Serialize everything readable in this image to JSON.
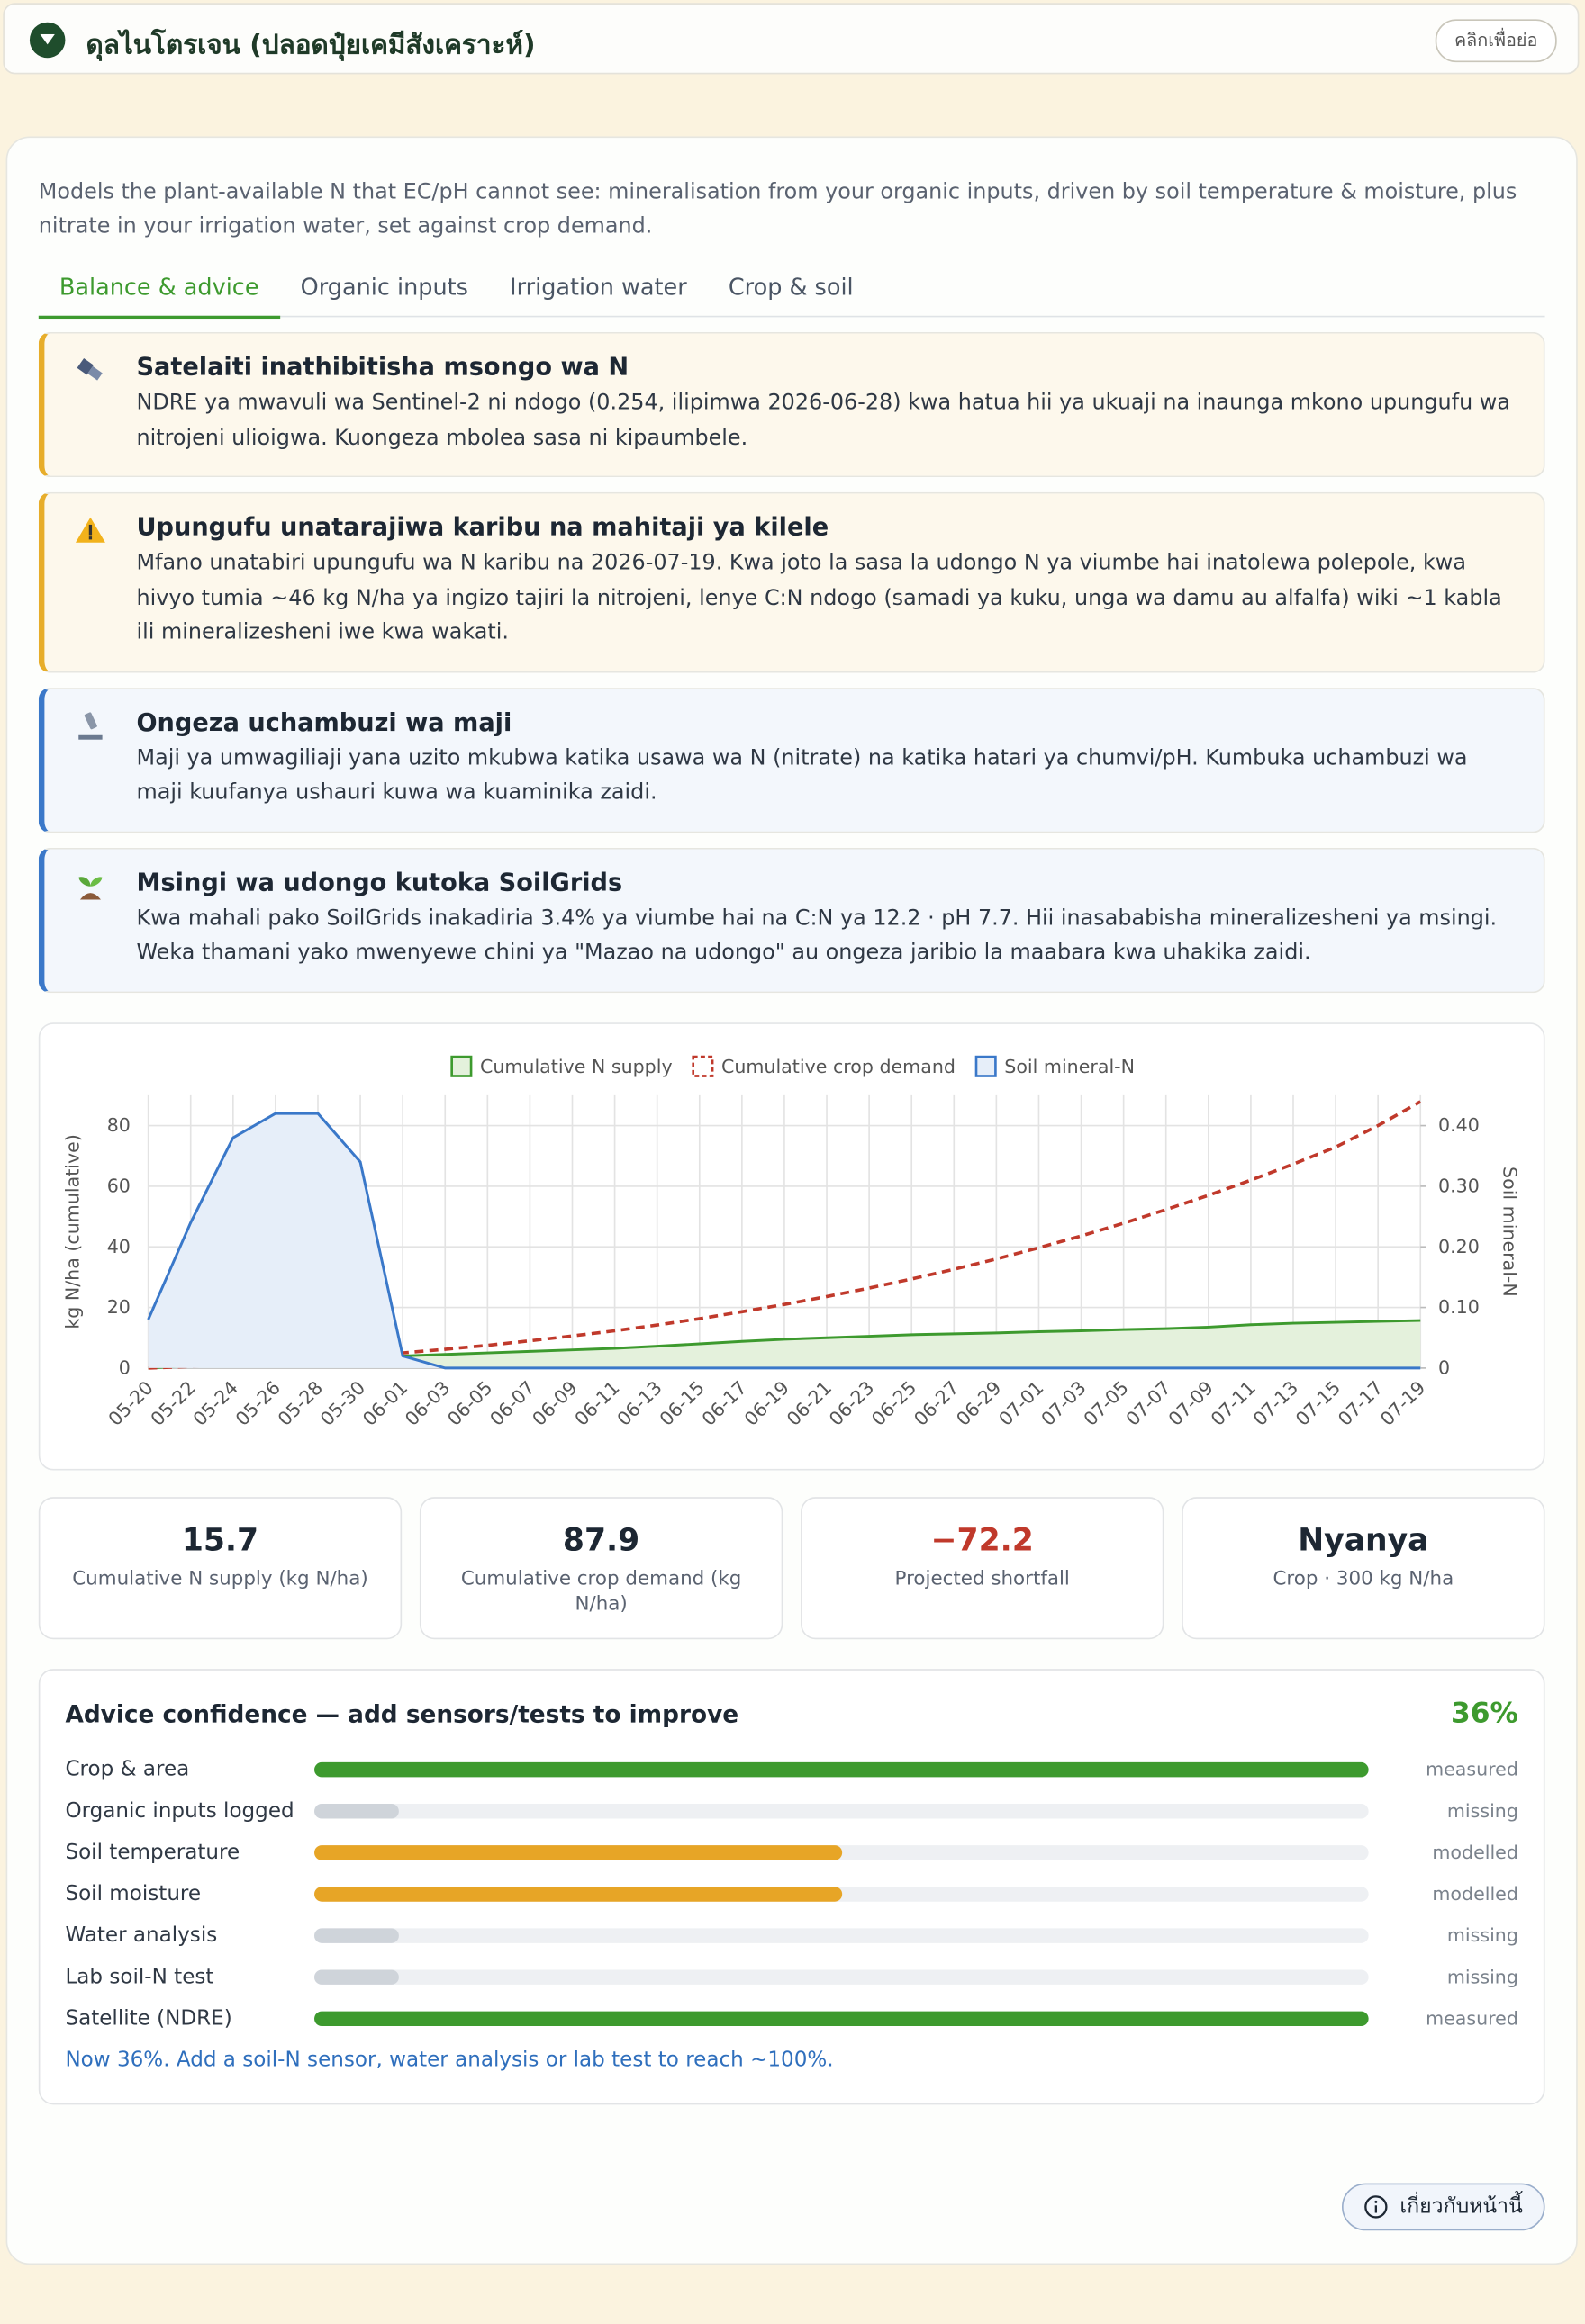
{
  "header": {
    "title": "ดุลไนโตรเจน (ปลอดปุ๋ยเคมีสังเคราะห์)",
    "toggle": "คลิกเพื่อย่อ"
  },
  "description": "Models the plant-available N that EC/pH cannot see: mineralisation from your organic inputs, driven by soil temperature & moisture, plus nitrate in your irrigation water, set against crop demand.",
  "tabs": [
    "Balance & advice",
    "Organic inputs",
    "Irrigation water",
    "Crop & soil"
  ],
  "alerts": [
    {
      "kind": "warning",
      "title": "Satelaiti inathibitisha msongo wa N",
      "body": "NDRE ya mwavuli wa Sentinel-2 ni ndogo (0.254, ilipimwa 2026-06-28) kwa hatua hii ya ukuaji na inaunga mkono upungufu wa nitrojeni ulioigwa. Kuongeza mbolea sasa ni kipaumbele."
    },
    {
      "kind": "warning",
      "title": "Upungufu unatarajiwa karibu na mahitaji ya kilele",
      "body": "Mfano unatabiri upungufu wa N karibu na 2026-07-19. Kwa joto la sasa la udongo N ya viumbe hai inatolewa polepole, kwa hivyo tumia ~46 kg N/ha ya ingizo tajiri la nitrojeni, lenye C:N ndogo (samadi ya kuku, unga wa damu au alfalfa) wiki ~1 kabla ili mineralizesheni iwe kwa wakati."
    },
    {
      "kind": "info",
      "title": "Ongeza uchambuzi wa maji",
      "body": "Maji ya umwagiliaji yana uzito mkubwa katika usawa wa N (nitrate) na katika hatari ya chumvi/pH. Kumbuka uchambuzi wa maji kuufanya ushauri kuwa wa kuaminika zaidi."
    },
    {
      "kind": "info",
      "title": "Msingi wa udongo kutoka SoilGrids",
      "body": "Kwa mahali pako SoilGrids inakadiria 3.4% ya viumbe hai na C:N ya 12.2 · pH 7.7. Hii inasababisha mineralizesheni ya msingi. Weka thamani yako mwenyewe chini ya \"Mazao na udongo\" au ongeza jaribio la maabara kwa uhakika zaidi."
    }
  ],
  "chart_data": {
    "type": "line",
    "categories": [
      "05-20",
      "05-22",
      "05-24",
      "05-26",
      "05-28",
      "05-30",
      "06-01",
      "06-03",
      "06-05",
      "06-07",
      "06-09",
      "06-11",
      "06-13",
      "06-15",
      "06-17",
      "06-19",
      "06-21",
      "06-23",
      "06-25",
      "06-27",
      "06-29",
      "07-01",
      "07-03",
      "07-05",
      "07-07",
      "07-09",
      "07-11",
      "07-13",
      "07-15",
      "07-17",
      "07-19"
    ],
    "series": [
      {
        "name": "Cumulative N supply",
        "color": "#3d9a2e",
        "fill": "#e4f1dc",
        "dash": false,
        "values": [
          0,
          0.7,
          1.4,
          2.1,
          2.8,
          3.4,
          4,
          4.5,
          5,
          5.5,
          6,
          6.5,
          7.2,
          8,
          8.8,
          9.5,
          10,
          10.5,
          11,
          11.3,
          11.6,
          12,
          12.3,
          12.7,
          13,
          13.5,
          14.3,
          14.8,
          15.1,
          15.4,
          15.7
        ]
      },
      {
        "name": "Cumulative crop demand",
        "color": "#c0392b",
        "fill": null,
        "dash": true,
        "values": [
          0,
          0.5,
          1.3,
          2.2,
          3.2,
          4.3,
          5,
          6.2,
          7.5,
          9,
          10.6,
          12.3,
          14.2,
          16.3,
          18.6,
          21,
          23.6,
          26.4,
          29.4,
          32.6,
          36,
          39.7,
          43.6,
          47.8,
          52.3,
          57,
          62,
          67.3,
          72.9,
          80,
          87.9
        ]
      },
      {
        "name": "Soil mineral-N",
        "color": "#3a78c9",
        "fill": "#e6eef9",
        "dash": false,
        "axis": "y2",
        "values": [
          0.08,
          0.24,
          0.38,
          0.42,
          0.42,
          0.34,
          0.02,
          0,
          0,
          0,
          0,
          0,
          0,
          0,
          0,
          0,
          0,
          0,
          0,
          0,
          0,
          0,
          0,
          0,
          0,
          0,
          0,
          0,
          0,
          0,
          0
        ]
      }
    ],
    "y_label": "kg N/ha (cumulative)",
    "y2_label": "Soil mineral-N",
    "ylim": [
      0,
      90
    ],
    "yticks": [
      0,
      20,
      40,
      60,
      80
    ],
    "y2lim": [
      0,
      0.45
    ],
    "y2ticks": [
      0,
      {
        "value": 0.1,
        "label": "0.10"
      },
      {
        "value": 0.2,
        "label": "0.20"
      },
      {
        "value": 0.3,
        "label": "0.30"
      },
      {
        "value": 0.4,
        "label": "0.40"
      }
    ],
    "grid": true,
    "legend": "top"
  },
  "stats": [
    {
      "value": "15.7",
      "label": "Cumulative N supply (kg N/ha)",
      "color": "#1d2733"
    },
    {
      "value": "87.9",
      "label": "Cumulative crop demand (kg N/ha)",
      "color": "#1d2733"
    },
    {
      "value": "−72.2",
      "label": "Projected shortfall",
      "color": "#c0392b"
    },
    {
      "value": "Nyanya",
      "label": "Crop · 300 kg N/ha",
      "color": "#1d2733"
    }
  ],
  "confidence": {
    "title": "Advice confidence — add sensors/tests to improve",
    "score": "36%",
    "rows": [
      {
        "label": "Crop & area",
        "status": "measured",
        "level": 1,
        "color": "#3d9a2e"
      },
      {
        "label": "Organic inputs logged",
        "status": "missing",
        "level": 0.08,
        "color": "#cfd4da"
      },
      {
        "label": "Soil temperature",
        "status": "modelled",
        "level": 0.5,
        "color": "#e7a526"
      },
      {
        "label": "Soil moisture",
        "status": "modelled",
        "level": 0.5,
        "color": "#e7a526"
      },
      {
        "label": "Water analysis",
        "status": "missing",
        "level": 0.08,
        "color": "#cfd4da"
      },
      {
        "label": "Lab soil-N test",
        "status": "missing",
        "level": 0.08,
        "color": "#cfd4da"
      },
      {
        "label": "Satellite (NDRE)",
        "status": "measured",
        "level": 1,
        "color": "#3d9a2e"
      }
    ],
    "note": "Now 36%. Add a soil-N sensor, water analysis or lab test to reach ~100%."
  },
  "about": "เกี่ยวกับหน้านี้"
}
